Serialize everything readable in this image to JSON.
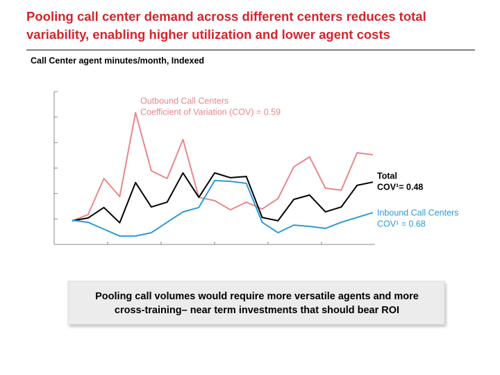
{
  "chart_data": {
    "type": "line",
    "title": [
      "Pooling call center demand across different centers reduces total",
      "variability, enabling higher utilization and lower agent costs"
    ],
    "subtitle": "Call Center agent minutes/month, Indexed",
    "callout": [
      "Pooling call volumes would require more versatile agents and more",
      "cross-training– near term investments that should bear ROI"
    ],
    "categories": [
      null,
      null,
      null,
      null,
      null,
      null,
      null,
      null,
      null,
      null,
      null,
      null,
      null,
      null,
      null,
      null,
      null,
      null,
      null,
      null
    ],
    "ylim": [
      0,
      6
    ],
    "yticks": [
      0,
      1,
      2,
      3,
      4,
      5,
      6
    ],
    "series": [
      {
        "name": "Outbound Call Centers",
        "cov_label": "Coefficient of Variation (COV) = 0.59",
        "color": "#e8868a",
        "values": [
          0.93,
          1.17,
          2.59,
          1.88,
          5.18,
          2.89,
          2.59,
          4.12,
          1.85,
          1.72,
          1.36,
          1.66,
          1.39,
          1.8,
          3.05,
          3.44,
          2.21,
          2.13,
          3.6,
          3.52
        ]
      },
      {
        "name": "Total",
        "cov_label": "COV¹= 0.48",
        "color": "#000000",
        "values": [
          0.93,
          1.04,
          1.45,
          0.85,
          2.43,
          1.47,
          1.66,
          2.81,
          1.85,
          2.81,
          2.62,
          2.67,
          1.06,
          0.93,
          1.77,
          1.94,
          1.28,
          1.47,
          2.32,
          2.45
        ]
      },
      {
        "name": "Inbound Call Centers",
        "cov_label": "COV¹ = 0.68",
        "color": "#2a9ad8",
        "values": [
          0.95,
          0.87,
          0.6,
          0.33,
          0.33,
          0.46,
          0.87,
          1.28,
          1.45,
          2.51,
          2.48,
          2.4,
          0.87,
          0.46,
          0.76,
          0.71,
          0.63,
          0.87,
          1.06,
          1.25
        ]
      }
    ]
  }
}
